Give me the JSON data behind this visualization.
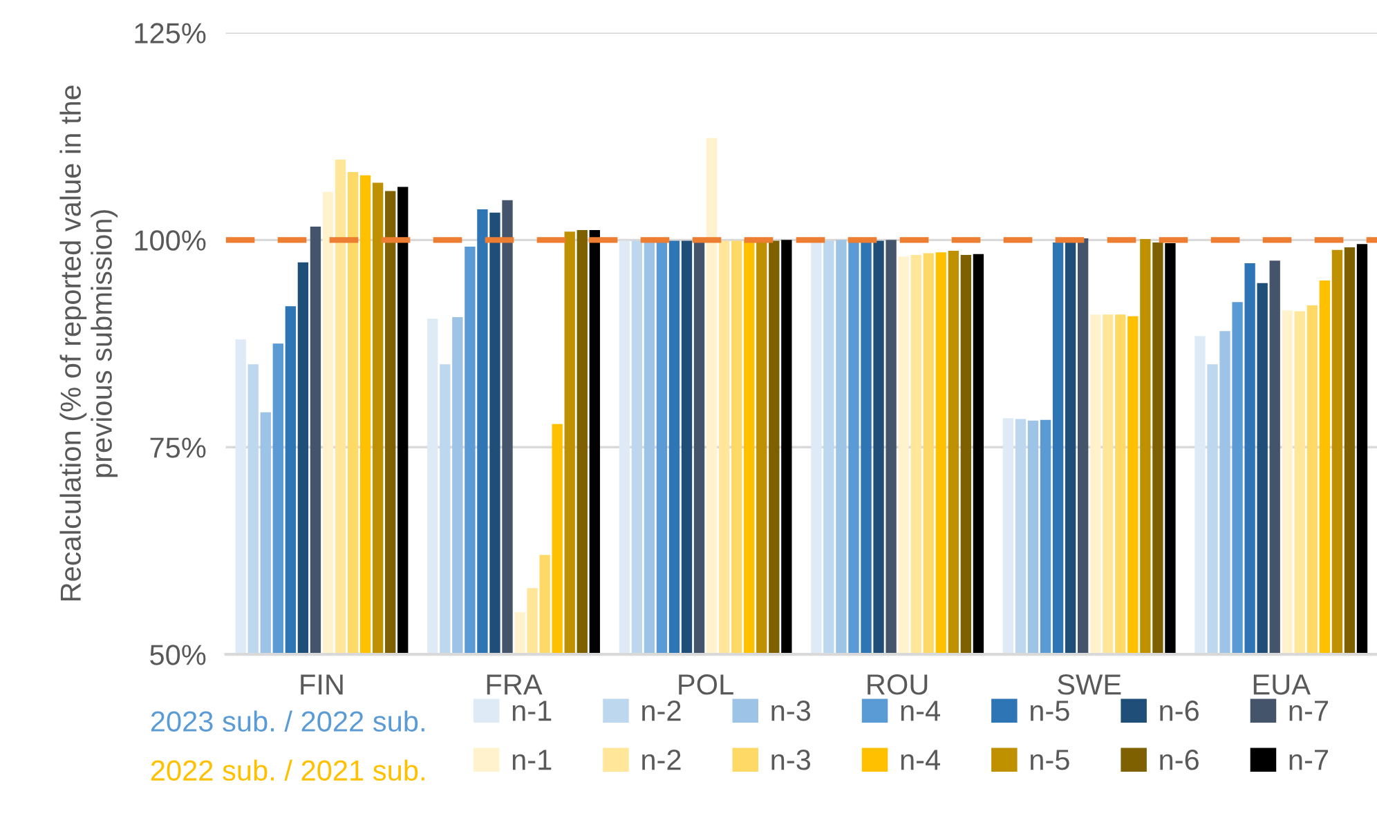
{
  "chart_data": {
    "type": "bar",
    "ylabel": "Recalculation (% of reported value in the\nprevious submission)",
    "categories": [
      "FIN",
      "FRA",
      "POL",
      "ROU",
      "SWE",
      "EUA"
    ],
    "ylim": [
      50,
      125
    ],
    "yticks": [
      {
        "value": 50,
        "label": "50%"
      },
      {
        "value": 75,
        "label": "75%"
      },
      {
        "value": 100,
        "label": "100%"
      },
      {
        "value": 125,
        "label": "125%"
      }
    ],
    "grid": "y",
    "legend": "bottom",
    "ref_lines": [
      {
        "axis": "y",
        "value": 100,
        "color": "#ed7d31",
        "line_style": "dashed"
      }
    ],
    "annotations": [
      "2023 sub. / 2022 sub.",
      "2022 sub. / 2021 sub."
    ],
    "series": [
      {
        "name": "n-1",
        "color": "#deebf7",
        "values": [
          88.0,
          90.5,
          99.9,
          99.9,
          78.5,
          88.4
        ]
      },
      {
        "name": "n-2",
        "color": "#bdd7ee",
        "values": [
          85.0,
          85.0,
          99.9,
          99.9,
          78.4,
          85.0
        ]
      },
      {
        "name": "n-3",
        "color": "#9dc3e6",
        "values": [
          79.2,
          90.7,
          100.0,
          100.0,
          78.2,
          89.0
        ]
      },
      {
        "name": "n-4",
        "color": "#5b9bd5",
        "values": [
          87.5,
          99.2,
          100.0,
          100.0,
          78.3,
          92.5
        ]
      },
      {
        "name": "n-5",
        "color": "#2e75b6",
        "values": [
          92.0,
          103.7,
          99.9,
          99.9,
          99.7,
          97.2
        ]
      },
      {
        "name": "n-6",
        "color": "#1f4e79",
        "values": [
          97.3,
          103.3,
          99.9,
          99.9,
          99.7,
          94.8
        ]
      },
      {
        "name": "n-7",
        "color": "#44546a",
        "values": [
          101.6,
          104.8,
          100.0,
          100.0,
          100.2,
          97.5
        ]
      },
      {
        "name": "n-1",
        "color": "#fff2cc",
        "values": [
          105.8,
          55.1,
          112.3,
          98.0,
          91.0,
          91.5
        ]
      },
      {
        "name": "n-2",
        "color": "#ffe699",
        "values": [
          109.7,
          58.0,
          99.9,
          98.2,
          91.0,
          91.4
        ]
      },
      {
        "name": "n-3",
        "color": "#ffd966",
        "values": [
          108.2,
          62.0,
          99.9,
          98.4,
          91.0,
          92.1
        ]
      },
      {
        "name": "n-4",
        "color": "#ffc000",
        "values": [
          107.8,
          77.8,
          100.0,
          98.5,
          90.8,
          95.1
        ]
      },
      {
        "name": "n-5",
        "color": "#bf9000",
        "values": [
          106.9,
          101.0,
          100.0,
          98.7,
          100.1,
          98.8
        ]
      },
      {
        "name": "n-6",
        "color": "#7f6000",
        "values": [
          105.9,
          101.2,
          99.9,
          98.2,
          99.7,
          99.1
        ]
      },
      {
        "name": "n-7",
        "color": "#000000",
        "values": [
          106.4,
          101.2,
          100.0,
          98.3,
          99.6,
          99.5
        ]
      }
    ]
  }
}
